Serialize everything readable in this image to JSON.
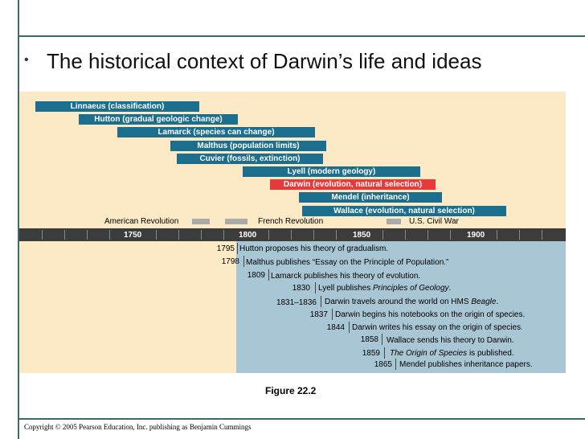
{
  "slide": {
    "bullet": "•",
    "title": "The historical context of Darwin’s life and ideas",
    "caption": "Figure 22.2",
    "copyright": "Copyright © 2005 Pearson Education, Inc. publishing as Benjamin Cummings"
  },
  "people": [
    {
      "label": "Linnaeus (classification)",
      "color": "#1b6e8e"
    },
    {
      "label": "Hutton (gradual geologic change)",
      "color": "#1b6e8e"
    },
    {
      "label": "Lamarck (species can change)",
      "color": "#1b6e8e"
    },
    {
      "label": "Malthus (population limits)",
      "color": "#1b6e8e"
    },
    {
      "label": "Cuvier (fossils, extinction)",
      "color": "#1b6e8e"
    },
    {
      "label": "Lyell (modern geology)",
      "color": "#1b6e8e"
    },
    {
      "label": "Darwin (evolution, natural selection)",
      "color": "#e73b3b"
    },
    {
      "label": "Mendel (inheritance)",
      "color": "#1b6e8e"
    },
    {
      "label": "Wallace (evolution, natural selection)",
      "color": "#1b6e8e"
    }
  ],
  "historical": [
    {
      "label": "American Revolution"
    },
    {
      "label": "French Revolution"
    },
    {
      "label": "U.S. Civil War"
    }
  ],
  "axis": [
    "1750",
    "1800",
    "1850",
    "1900"
  ],
  "events": [
    {
      "year": "1795",
      "text": "Hutton proposes his theory of gradualism."
    },
    {
      "year": "1798",
      "text": "Malthus publishes “Essay on the Principle of Population.”"
    },
    {
      "year": "1809",
      "text": "Lamarck publishes his theory of evolution."
    },
    {
      "year": "1830",
      "text_pre": "Lyell publishes ",
      "text_em": "Principles of Geology",
      "text_post": "."
    },
    {
      "year": "1831–1836",
      "text_pre": "Darwin travels around the world on HMS ",
      "text_em": "Beagle",
      "text_post": "."
    },
    {
      "year": "1837",
      "text": "Darwin begins his notebooks on the origin of species."
    },
    {
      "year": "1844",
      "text": "Darwin writes his essay on the origin of species."
    },
    {
      "year": "1858",
      "text": "Wallace sends his theory to Darwin."
    },
    {
      "year": "1859",
      "text_pre": "",
      "text_em": "The Origin of Species",
      "text_post": " is published."
    },
    {
      "year": "1865",
      "text": "Mendel publishes inheritance papers."
    }
  ]
}
